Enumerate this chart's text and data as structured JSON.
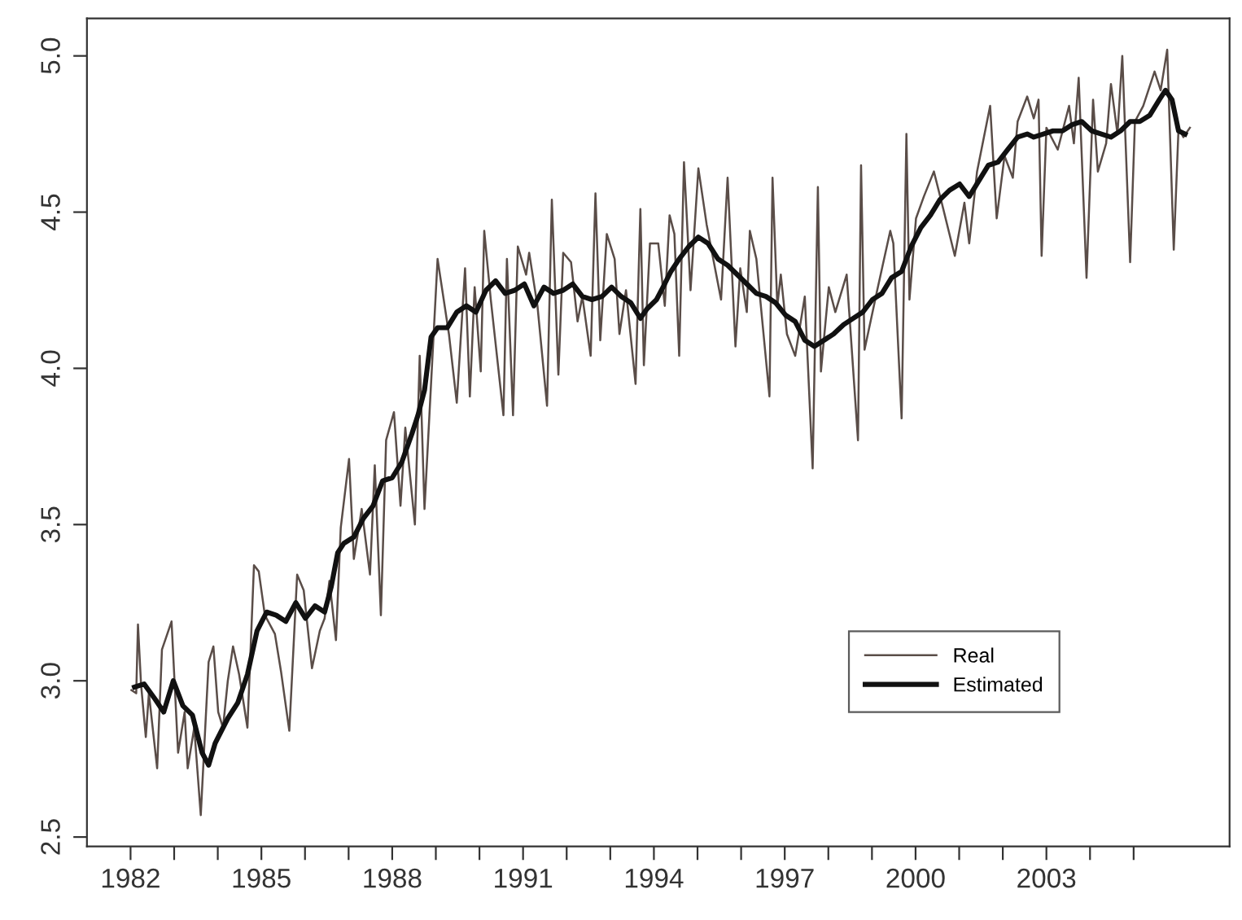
{
  "chart_data": {
    "type": "line",
    "xlim": [
      1981.0,
      2007.2
    ],
    "ylim": [
      2.47,
      5.12
    ],
    "xticks": [
      1982,
      {
        "value": 1983,
        "label": null
      },
      {
        "value": 1984,
        "label": null
      },
      1985,
      {
        "value": 1986,
        "label": null
      },
      {
        "value": 1987,
        "label": null
      },
      1988,
      {
        "value": 1989,
        "label": null
      },
      {
        "value": 1990,
        "label": null
      },
      1991,
      {
        "value": 1992,
        "label": null
      },
      {
        "value": 1993,
        "label": null
      },
      1994,
      {
        "value": 1995,
        "label": null
      },
      {
        "value": 1996,
        "label": null
      },
      1997,
      {
        "value": 1998,
        "label": null
      },
      {
        "value": 1999,
        "label": null
      },
      2000,
      {
        "value": 2001,
        "label": null
      },
      {
        "value": 2002,
        "label": null
      },
      2003,
      {
        "value": 2004,
        "label": null
      },
      {
        "value": 2005,
        "label": null
      }
    ],
    "yticks": [
      2.5,
      {
        "value": 3,
        "label": "3.0"
      },
      3.5,
      {
        "value": 4,
        "label": "4.0"
      },
      4.5,
      {
        "value": 5,
        "label": "5.0"
      }
    ],
    "grid": false,
    "legend": "bottom right",
    "line_style": "solid",
    "marker": "none",
    "series": [
      {
        "name": "Real",
        "color": "#5a4d48",
        "x": [
          1982.02,
          1982.13,
          1982.17,
          1982.24,
          1982.35,
          1982.42,
          1982.61,
          1982.72,
          1982.94,
          1983.09,
          1983.24,
          1983.31,
          1983.46,
          1983.61,
          1983.79,
          1983.9,
          1984.01,
          1984.12,
          1984.23,
          1984.35,
          1984.49,
          1984.68,
          1984.83,
          1984.94,
          1985.08,
          1985.31,
          1985.45,
          1985.64,
          1985.82,
          1985.97,
          1986.16,
          1986.34,
          1986.45,
          1986.56,
          1986.71,
          1986.82,
          1987.01,
          1987.12,
          1987.3,
          1987.49,
          1987.6,
          1987.74,
          1987.86,
          1988.04,
          1988.19,
          1988.3,
          1988.52,
          1988.63,
          1988.74,
          1989.04,
          1989.3,
          1989.48,
          1989.67,
          1989.78,
          1989.89,
          1990.03,
          1990.11,
          1990.26,
          1990.55,
          1990.63,
          1990.77,
          1990.88,
          1991.07,
          1991.14,
          1991.33,
          1991.55,
          1991.66,
          1991.81,
          1991.92,
          1992.1,
          1992.25,
          1992.36,
          1992.55,
          1992.66,
          1992.77,
          1992.92,
          1993.1,
          1993.21,
          1993.36,
          1993.58,
          1993.69,
          1993.77,
          1993.91,
          1994.1,
          1994.25,
          1994.36,
          1994.47,
          1994.58,
          1994.69,
          1994.84,
          1995.02,
          1995.21,
          1995.54,
          1995.69,
          1995.87,
          1995.98,
          1996.13,
          1996.2,
          1996.35,
          1996.65,
          1996.72,
          1996.83,
          1996.91,
          1997.05,
          1997.24,
          1997.46,
          1997.64,
          1997.76,
          1997.83,
          1998.01,
          1998.16,
          1998.42,
          1998.68,
          1998.75,
          1998.83,
          1999.12,
          1999.42,
          1999.49,
          1999.68,
          1999.79,
          1999.86,
          2000.01,
          2000.19,
          2000.42,
          2000.6,
          2000.9,
          2001.12,
          2001.23,
          2001.41,
          2001.71,
          2001.86,
          2002.04,
          2002.23,
          2002.34,
          2002.56,
          2002.71,
          2002.82,
          2002.89,
          2003.0,
          2003.26,
          2003.52,
          2003.63,
          2003.74,
          2003.92,
          2004.07,
          2004.18,
          2004.37,
          2004.48,
          2004.63,
          2004.74,
          2004.92,
          2005.03,
          2005.22,
          2005.48,
          2005.62,
          2005.77,
          2005.92,
          2006.03,
          2006.14,
          2006.29
        ],
        "values": [
          2.97,
          2.96,
          3.18,
          2.99,
          2.82,
          2.96,
          2.72,
          3.1,
          3.19,
          2.77,
          2.9,
          2.72,
          2.85,
          2.57,
          3.06,
          3.11,
          2.9,
          2.85,
          3.0,
          3.11,
          3.02,
          2.85,
          3.37,
          3.35,
          3.21,
          3.15,
          3.03,
          2.84,
          3.34,
          3.29,
          3.04,
          3.16,
          3.2,
          3.32,
          3.13,
          3.49,
          3.71,
          3.39,
          3.55,
          3.34,
          3.69,
          3.21,
          3.77,
          3.86,
          3.56,
          3.81,
          3.5,
          4.04,
          3.55,
          4.35,
          4.11,
          3.89,
          4.32,
          3.91,
          4.26,
          3.99,
          4.44,
          4.22,
          3.85,
          4.35,
          3.85,
          4.39,
          4.3,
          4.37,
          4.2,
          3.88,
          4.54,
          3.98,
          4.37,
          4.34,
          4.15,
          4.23,
          4.04,
          4.56,
          4.09,
          4.43,
          4.35,
          4.11,
          4.25,
          3.95,
          4.51,
          4.01,
          4.4,
          4.4,
          4.2,
          4.49,
          4.43,
          4.04,
          4.66,
          4.25,
          4.64,
          4.46,
          4.22,
          4.61,
          4.07,
          4.32,
          4.18,
          4.44,
          4.35,
          3.91,
          4.61,
          4.2,
          4.3,
          4.11,
          4.04,
          4.23,
          3.68,
          4.58,
          3.99,
          4.26,
          4.18,
          4.3,
          3.77,
          4.65,
          4.06,
          4.25,
          4.44,
          4.4,
          3.84,
          4.75,
          4.22,
          4.48,
          4.55,
          4.63,
          4.53,
          4.36,
          4.53,
          4.4,
          4.63,
          4.84,
          4.48,
          4.68,
          4.61,
          4.79,
          4.87,
          4.8,
          4.86,
          4.36,
          4.77,
          4.7,
          4.84,
          4.72,
          4.93,
          4.29,
          4.86,
          4.63,
          4.72,
          4.91,
          4.75,
          5.0,
          4.34,
          4.79,
          4.84,
          4.95,
          4.89,
          5.02,
          4.38,
          4.77,
          4.74,
          4.77
        ]
      },
      {
        "name": "Estimated",
        "color": "#111111",
        "x": [
          1982.09,
          1982.31,
          1982.57,
          1982.76,
          1982.98,
          1983.2,
          1983.42,
          1983.64,
          1983.79,
          1983.94,
          1984.23,
          1984.46,
          1984.68,
          1984.9,
          1985.12,
          1985.34,
          1985.56,
          1985.79,
          1986.01,
          1986.23,
          1986.45,
          1986.6,
          1986.75,
          1986.89,
          1987.12,
          1987.34,
          1987.56,
          1987.78,
          1988.0,
          1988.22,
          1988.45,
          1988.59,
          1988.74,
          1988.89,
          1989.04,
          1989.26,
          1989.48,
          1989.7,
          1989.92,
          1990.15,
          1990.37,
          1990.59,
          1990.81,
          1991.03,
          1991.25,
          1991.48,
          1991.7,
          1991.92,
          1992.14,
          1992.36,
          1992.58,
          1992.81,
          1993.03,
          1993.25,
          1993.47,
          1993.69,
          1993.84,
          1994.06,
          1994.21,
          1994.39,
          1994.58,
          1994.8,
          1995.02,
          1995.24,
          1995.47,
          1995.69,
          1995.91,
          1996.13,
          1996.35,
          1996.57,
          1996.79,
          1997.02,
          1997.24,
          1997.46,
          1997.68,
          1997.9,
          1998.12,
          1998.35,
          1998.57,
          1998.79,
          1999.01,
          1999.23,
          1999.45,
          1999.68,
          1999.9,
          2000.12,
          2000.34,
          2000.56,
          2000.78,
          2001.01,
          2001.23,
          2001.45,
          2001.67,
          2001.89,
          2002.11,
          2002.34,
          2002.56,
          2002.71,
          2002.93,
          2003.15,
          2003.37,
          2003.59,
          2003.81,
          2004.04,
          2004.26,
          2004.48,
          2004.7,
          2004.92,
          2005.14,
          2005.37,
          2005.59,
          2005.73,
          2005.88,
          2006.03,
          2006.18
        ],
        "values": [
          2.98,
          2.99,
          2.94,
          2.9,
          3.0,
          2.92,
          2.89,
          2.77,
          2.73,
          2.8,
          2.88,
          2.93,
          3.02,
          3.16,
          3.22,
          3.21,
          3.19,
          3.25,
          3.2,
          3.24,
          3.22,
          3.3,
          3.41,
          3.44,
          3.46,
          3.52,
          3.56,
          3.64,
          3.65,
          3.7,
          3.79,
          3.85,
          3.93,
          4.1,
          4.13,
          4.13,
          4.18,
          4.2,
          4.18,
          4.25,
          4.28,
          4.24,
          4.25,
          4.27,
          4.2,
          4.26,
          4.24,
          4.25,
          4.27,
          4.23,
          4.22,
          4.23,
          4.26,
          4.23,
          4.21,
          4.16,
          4.19,
          4.22,
          4.26,
          4.31,
          4.35,
          4.39,
          4.42,
          4.4,
          4.35,
          4.33,
          4.3,
          4.27,
          4.24,
          4.23,
          4.21,
          4.17,
          4.15,
          4.09,
          4.07,
          4.09,
          4.11,
          4.14,
          4.16,
          4.18,
          4.22,
          4.24,
          4.29,
          4.31,
          4.39,
          4.45,
          4.49,
          4.54,
          4.57,
          4.59,
          4.55,
          4.6,
          4.65,
          4.66,
          4.7,
          4.74,
          4.75,
          4.74,
          4.75,
          4.76,
          4.76,
          4.78,
          4.79,
          4.76,
          4.75,
          4.74,
          4.76,
          4.79,
          4.79,
          4.81,
          4.86,
          4.89,
          4.86,
          4.76,
          4.75
        ]
      }
    ]
  }
}
